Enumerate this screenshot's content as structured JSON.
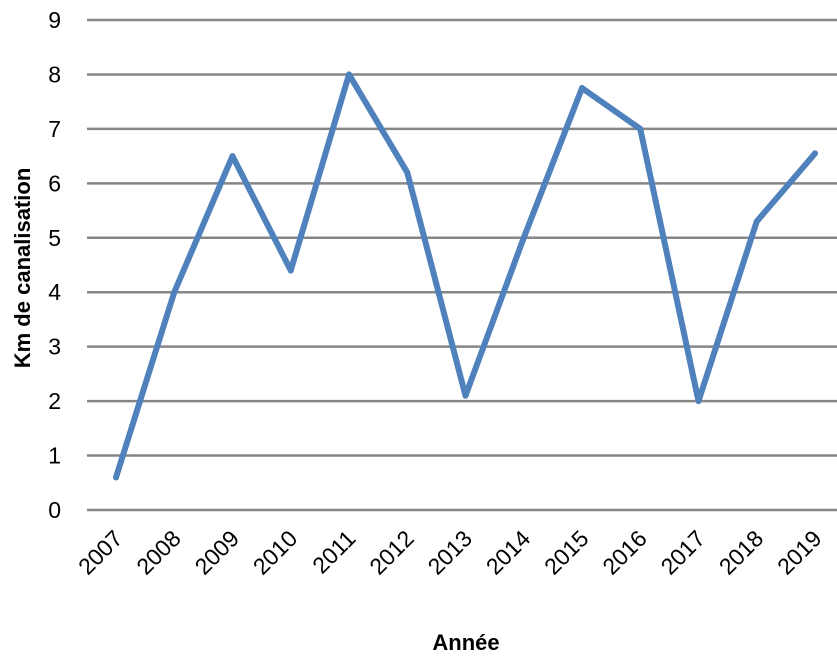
{
  "chart_data": {
    "type": "line",
    "title": "",
    "xlabel": "Année",
    "ylabel": "Km de canalisation",
    "ylim": [
      0,
      9
    ],
    "yticks": [
      "0",
      "1",
      "2",
      "3",
      "4",
      "5",
      "6",
      "7",
      "8",
      "9"
    ],
    "categories": [
      "2007",
      "2008",
      "2009",
      "2010",
      "2011",
      "2012",
      "2013",
      "2014",
      "2015",
      "2016",
      "2017",
      "2018",
      "2019"
    ],
    "series": [
      {
        "values": [
          0.6,
          4.0,
          6.5,
          4.4,
          8.0,
          6.2,
          2.1,
          5.0,
          7.75,
          7.0,
          2.0,
          5.3,
          6.55
        ],
        "color": "#4f81bd"
      }
    ],
    "grid": true,
    "legend": "none"
  }
}
